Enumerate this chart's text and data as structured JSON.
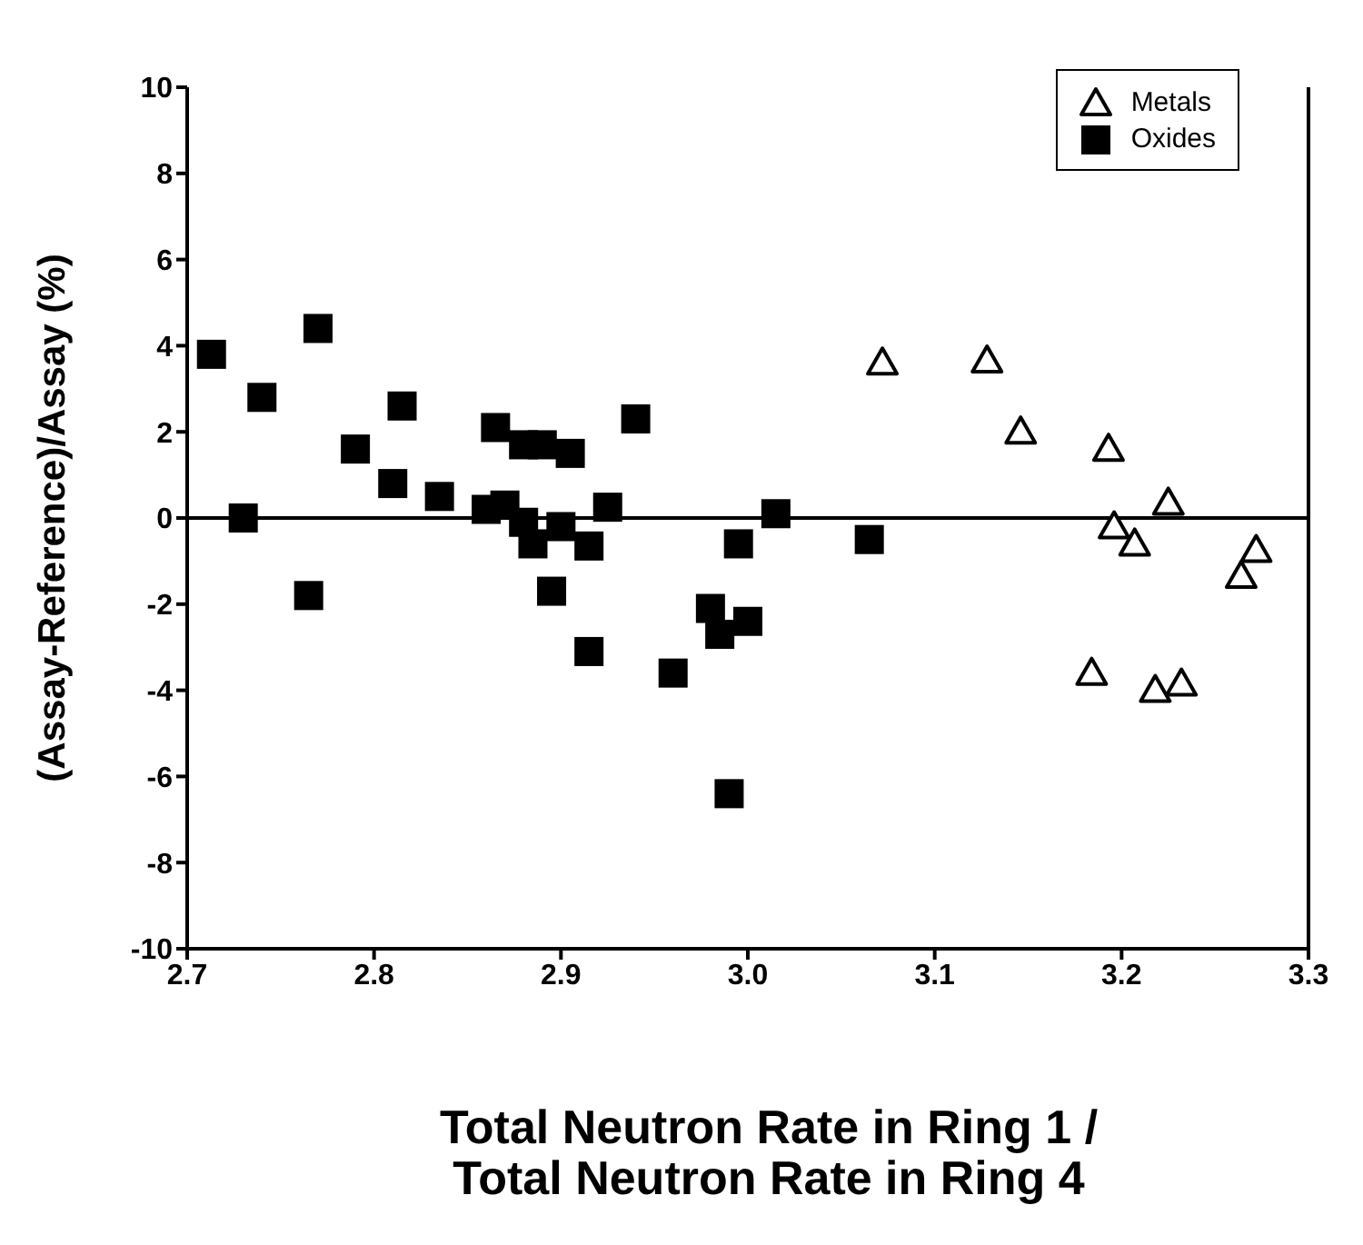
{
  "chart_data": {
    "type": "scatter",
    "xlabel": "Total Neutron Rate in Ring 1 /\nTotal Neutron Rate in Ring 4",
    "ylabel": "(Assay-Reference)/Assay (%)",
    "xlim": [
      2.7,
      3.3
    ],
    "xticks": [
      2.7,
      2.8,
      2.9,
      {
        "value": 3.0,
        "label": "3.0"
      },
      3.1,
      3.2,
      3.3
    ],
    "ylim": [
      -10,
      10
    ],
    "yticks": [
      -10,
      -8,
      -6,
      -4,
      -2,
      0,
      2,
      4,
      6,
      8,
      10
    ],
    "legend": "top right",
    "grid": false,
    "ref_lines": [
      {
        "axis": "y",
        "value": 0,
        "color": "#000000",
        "line_style": "solid"
      }
    ],
    "series": [
      {
        "name": "Metals",
        "color": "#000000",
        "marker": "triangle",
        "x": [
          3.072,
          3.128,
          3.146,
          3.193,
          3.225,
          3.196,
          3.207,
          3.272,
          3.264,
          3.184,
          3.218,
          3.232
        ],
        "values": [
          3.6,
          3.65,
          2.0,
          1.6,
          0.35,
          -0.2,
          -0.6,
          -0.75,
          -1.35,
          -3.6,
          -4.0,
          -3.85
        ]
      },
      {
        "name": "Oxides",
        "color": "#000000",
        "marker": "square",
        "x": [
          2.713,
          2.73,
          2.74,
          2.77,
          2.765,
          2.79,
          2.81,
          2.815,
          2.835,
          2.865,
          2.86,
          2.87,
          2.88,
          2.89,
          2.905,
          2.94,
          2.925,
          2.885,
          2.88,
          2.9,
          2.915,
          2.895,
          2.915,
          2.96,
          2.98,
          2.985,
          2.99,
          3.0,
          2.995,
          3.015,
          3.065
        ],
        "values": [
          3.8,
          0.0,
          2.8,
          4.4,
          -1.8,
          1.6,
          0.8,
          2.6,
          0.5,
          2.1,
          0.2,
          0.3,
          1.7,
          1.7,
          1.5,
          2.3,
          0.25,
          -0.6,
          -0.1,
          -0.2,
          -0.65,
          -1.7,
          -3.1,
          -3.6,
          -2.1,
          -2.7,
          -6.4,
          -2.4,
          -0.6,
          0.1,
          -0.5
        ]
      }
    ]
  }
}
